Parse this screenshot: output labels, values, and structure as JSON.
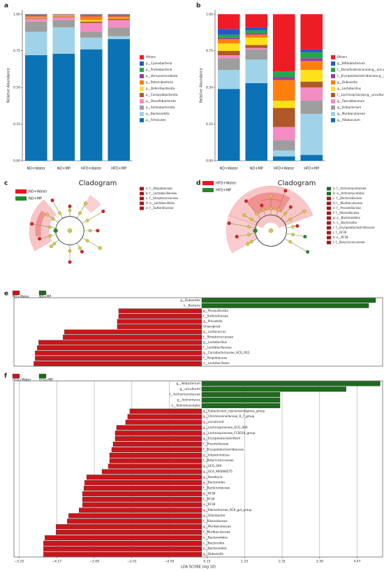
{
  "chart_data": [
    {
      "type": "stacked",
      "panel": "a",
      "ylabel": "Relative Abundance",
      "categories": [
        "ND+Water",
        "ND+MP",
        "HFD+Water",
        "HFD+MP"
      ],
      "ylim": [
        0,
        1.03
      ],
      "yticks": [
        {
          "value": 0,
          "label": "0.00"
        },
        {
          "value": 0.25,
          "label": "0.25"
        },
        {
          "value": 0.5,
          "label": "0.50"
        },
        {
          "value": 0.75,
          "label": "0.75"
        },
        {
          "value": 1,
          "label": "1.00"
        }
      ],
      "series": [
        {
          "name": "Others",
          "color": "#ee1c25",
          "values": [
            0.002,
            0.002,
            0.002,
            0.002
          ]
        },
        {
          "name": "p__Cyanobacteria",
          "color": "#2b55c6",
          "values": [
            0.003,
            0.001,
            0.003,
            0.003
          ]
        },
        {
          "name": "p__Proteobacteria",
          "color": "#22a84a",
          "values": [
            0.005,
            0.002,
            0.005,
            0.005
          ]
        },
        {
          "name": "p__Verrucomicrobiota",
          "color": "#9b3fa0",
          "values": [
            0.005,
            0.002,
            0.005,
            0.005
          ]
        },
        {
          "name": "p__Patescibacteria",
          "color": "#ff7f0e",
          "values": [
            0.005,
            0.003,
            0.025,
            0.01
          ]
        },
        {
          "name": "p__Deferribacterota",
          "color": "#ffe11a",
          "values": [
            0.005,
            0.005,
            0.01,
            0.005
          ]
        },
        {
          "name": "p__Campylobacterota",
          "color": "#b0582a",
          "values": [
            0.005,
            0.005,
            0.01,
            0.01
          ]
        },
        {
          "name": "p__Desulfobacterota",
          "color": "#f58bc3",
          "values": [
            0.02,
            0.02,
            0.06,
            0.05
          ]
        },
        {
          "name": "p__Actinobacteriota",
          "color": "#9e9e9e",
          "values": [
            0.07,
            0.05,
            0.04,
            0.06
          ]
        },
        {
          "name": "p__Bacteroidota",
          "color": "#9fd3ea",
          "values": [
            0.16,
            0.18,
            0.08,
            0.02
          ]
        },
        {
          "name": "p__Firmicutes",
          "color": "#0b72b5",
          "values": [
            0.72,
            0.73,
            0.76,
            0.83
          ]
        }
      ]
    },
    {
      "type": "stacked",
      "panel": "b",
      "ylabel": "Relative Abundance",
      "categories": [
        "ND+Water",
        "ND+MP",
        "HFD+Water",
        "HFD+MP"
      ],
      "ylim": [
        0,
        1.03
      ],
      "yticks": [
        {
          "value": 0,
          "label": "0.00"
        },
        {
          "value": 0.25,
          "label": "0.25"
        },
        {
          "value": 0.5,
          "label": "0.50"
        },
        {
          "value": 0.75,
          "label": "0.75"
        },
        {
          "value": 1,
          "label": "1.00"
        }
      ],
      "series": [
        {
          "name": "Others",
          "color": "#ee1c25",
          "values": [
            0.1,
            0.09,
            0.39,
            0.24
          ]
        },
        {
          "name": "g__Bifidobacterium",
          "color": "#2b55c6",
          "values": [
            0.04,
            0.02,
            0.0,
            0.02
          ]
        },
        {
          "name": "f__Desulfovibrionaceae;g__uncultured",
          "color": "#22a84a",
          "values": [
            0.02,
            0.02,
            0.04,
            0.04
          ]
        },
        {
          "name": "f__Erysipelatoclostridiaceae;g__uncultured",
          "color": "#9b3fa0",
          "values": [
            0.01,
            0.01,
            0.02,
            0.02
          ]
        },
        {
          "name": "g__Dubosiella",
          "color": "#ff7f0e",
          "values": [
            0.03,
            0.02,
            0.14,
            0.06
          ]
        },
        {
          "name": "g__Lactobacillus",
          "color": "#ffe11a",
          "values": [
            0.05,
            0.05,
            0.05,
            0.08
          ]
        },
        {
          "name": "f__Lachnospiraceae;g__uncultured",
          "color": "#b0582a",
          "values": [
            0.03,
            0.02,
            0.13,
            0.04
          ]
        },
        {
          "name": "g__Faecalibaculum",
          "color": "#f58bc3",
          "values": [
            0.02,
            0.01,
            0.09,
            0.09
          ]
        },
        {
          "name": "g__Ileibacterium",
          "color": "#9e9e9e",
          "values": [
            0.08,
            0.07,
            0.07,
            0.09
          ]
        },
        {
          "name": "g__Muribaculaceae",
          "color": "#9fd3ea",
          "values": [
            0.13,
            0.16,
            0.04,
            0.28
          ]
        },
        {
          "name": "g__Allobaculum",
          "color": "#0b72b5",
          "values": [
            0.49,
            0.53,
            0.03,
            0.04
          ]
        }
      ]
    },
    {
      "type": "cladogram",
      "panel": "c",
      "title": "Cladogram",
      "groups": [
        {
          "name": "ND+Water",
          "color": "#e31a1c"
        },
        {
          "name": "ND+MP",
          "color": "#1f8a2a"
        }
      ],
      "items": [
        {
          "label": "a: f__Atopobiaceae",
          "color": "#a01818"
        },
        {
          "label": "b: f__Lactobacillaceae",
          "color": "#a01818"
        },
        {
          "label": "c: f__Streptococcaceae",
          "color": "#a01818"
        },
        {
          "label": "d: o__Lactobacillales",
          "color": "#a01818"
        },
        {
          "label": "e: f__Sutterellaceae",
          "color": "#a01818"
        }
      ]
    },
    {
      "type": "cladogram",
      "panel": "d",
      "title": "Cladogram",
      "groups": [
        {
          "name": "HFD+Water",
          "color": "#e31a1c"
        },
        {
          "name": "HFD+MP",
          "color": "#1f8a2a"
        }
      ],
      "items": [
        {
          "label": "a: f__Actinomycetaceae",
          "color": "#1f6a2a"
        },
        {
          "label": "b: o__Actinomycetales",
          "color": "#1f6a2a"
        },
        {
          "label": "c: f__Bacteroidaceae",
          "color": "#a01818"
        },
        {
          "label": "d: f__Muribaculaceae",
          "color": "#a01818"
        },
        {
          "label": "e: f__Prevotellaceae",
          "color": "#a01818"
        },
        {
          "label": "f: f__Rikenellaceae",
          "color": "#a01818"
        },
        {
          "label": "g: o__Bacteroidales",
          "color": "#a01818"
        },
        {
          "label": "h: c__Bacteroidia",
          "color": "#a01818"
        },
        {
          "label": "i: f__Erysipelatoclostridiaceae",
          "color": "#a01818"
        },
        {
          "label": "j: f__RF39",
          "color": "#a01818"
        },
        {
          "label": "k: o__RF39",
          "color": "#a01818"
        },
        {
          "label": "l: f__Butyricicoccaceae",
          "color": "#a01818"
        }
      ]
    },
    {
      "type": "lda",
      "panel": "e",
      "groups": [
        {
          "name": "ND+Water",
          "color": "#c8161b"
        },
        {
          "name": "ND+MP",
          "color": "#1e6b1e"
        }
      ],
      "xlim": [
        -5.4,
        5.2
      ],
      "categories": [
        "g__Dubosiella",
        "k__Bacteria",
        "g__Parasutterella",
        "f__Sutterellaceae",
        "g__Prevotella",
        "Unassigned",
        "g__Lactococcus",
        "f__Streptococcaceae",
        "g__Lactobacillus",
        "f__Lactobacillaceae",
        "g__Coriobacteriaceae_UCG_002",
        "f__Atopobiaceae",
        "o__Lactobacillales"
      ],
      "values": [
        5.0,
        4.8,
        -2.39,
        -2.39,
        -2.43,
        -2.43,
        -3.95,
        -3.99,
        -4.69,
        -4.73,
        -4.79,
        -4.79,
        -4.83
      ]
    },
    {
      "type": "lda",
      "panel": "f",
      "xlabel": "LDA SCORE (log 10)",
      "groups": [
        {
          "name": "HFD+Water",
          "color": "#c8161b"
        },
        {
          "name": "HFD+MP",
          "color": "#1e6b1e"
        }
      ],
      "xlim": [
        -5.4,
        5.2
      ],
      "xticks": [
        {
          "value": -5.25,
          "label": "−5.25"
        },
        {
          "value": -4.17,
          "label": "−4.17"
        },
        {
          "value": -3.09,
          "label": "−3.09"
        },
        {
          "value": -2.01,
          "label": "−2.01"
        },
        {
          "value": -0.93,
          "label": "−0.93"
        },
        0.15,
        1.23,
        2.31,
        3.39,
        4.47
      ],
      "categories": [
        "g__Ileibacterium",
        "g__uncultured",
        "f__Actinomycetaceae",
        "g__Actinomyces",
        "o__Actinomycetales",
        "g__Eubacterium_coprostanoligenes_group",
        "g__Christensenellaceae_R_7_group",
        "g__uncultured",
        "g__Lachnospiraceae_UCG_006",
        "g__Lachnospiraceae_FCS020_group",
        "g__Erysipelatoclostridium",
        "f__Prevotellaceae",
        "f__Erysipelatoclostridiaceae",
        "g__Intestinimonas",
        "f__Butyricicoccaceae",
        "g__UCG_009",
        "g__GCA_900066575",
        "g__Roseburia",
        "g__Bacteroides",
        "f__Bacteroidaceae",
        "g__RF39",
        "f__RF39",
        "o__RF39",
        "g__Rikenellaceae_RC9_gut_group",
        "g__Odoribacter",
        "f__Rikenellaceae",
        "g__Muribaculaceae",
        "f__Muribaculaceae",
        "o__Bacteroidales",
        "c__Bacteroidia",
        "p__Bacteroidota",
        "g__Dubosiella"
      ],
      "values": [
        5.13,
        4.15,
        2.25,
        2.25,
        2.25,
        -2.07,
        -2.13,
        -2.19,
        -2.45,
        -2.49,
        -2.49,
        -2.55,
        -2.59,
        -2.65,
        -2.65,
        -2.69,
        -2.87,
        -3.31,
        -3.37,
        -3.39,
        -3.43,
        -3.43,
        -3.43,
        -3.53,
        -3.83,
        -3.87,
        -4.19,
        -4.19,
        -4.51,
        -4.55,
        -4.55,
        -4.55
      ]
    }
  ]
}
